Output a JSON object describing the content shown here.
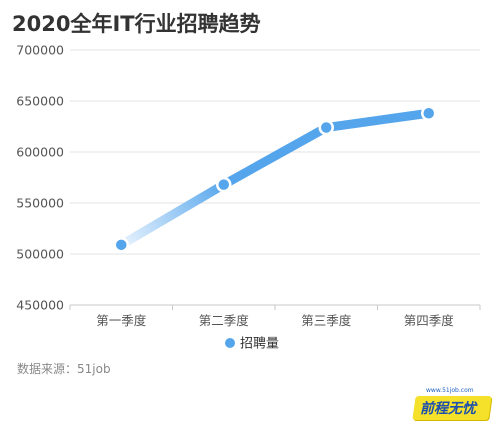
{
  "title": "2020全年IT行业招聘趋势",
  "source": "数据来源：51job",
  "logo": {
    "url": "www.51job.com",
    "name": "前程无忧"
  },
  "colors": {
    "line": "#55a5ec",
    "line_light": "#d8ebfb",
    "grid": "#e3e3e3",
    "axis": "#c8c8c8"
  },
  "chart_data": {
    "type": "line",
    "title": "2020全年IT行业招聘趋势",
    "categories": [
      "第一季度",
      "第二季度",
      "第三季度",
      "第四季度"
    ],
    "series": [
      {
        "name": "招聘量",
        "values": [
          509000,
          568000,
          624000,
          638000
        ]
      }
    ],
    "ylim": [
      450000,
      700000
    ],
    "yticks": [
      "700000",
      "650000",
      "600000",
      "550000",
      "500000",
      "450000"
    ],
    "grid": true,
    "legend": "bottom"
  }
}
